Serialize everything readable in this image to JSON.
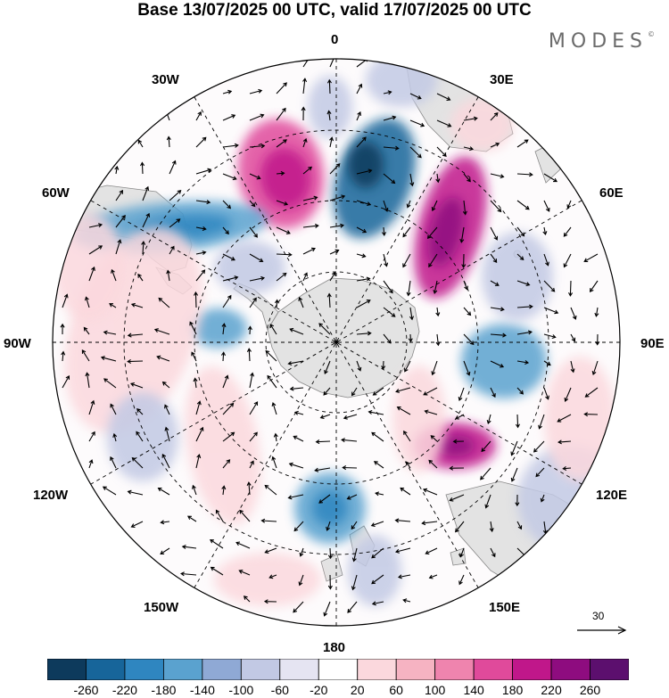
{
  "title": "Base 13/07/2025 00 UTC, valid 17/07/2025 00 UTC",
  "brand": {
    "text": "MODES",
    "mark": "©"
  },
  "longitude_labels": {
    "top": "0",
    "bottom": "180",
    "left": "90W",
    "right": "90E",
    "upper_left_1": "30W",
    "upper_left_2": "60W",
    "upper_right_1": "30E",
    "upper_right_2": "60E",
    "lower_left_1": "120W",
    "lower_left_2": "150W",
    "lower_right_1": "120E",
    "lower_right_2": "150E"
  },
  "reference_vector": {
    "label": "30"
  },
  "colorbar": {
    "ticks": [
      "-260",
      "-220",
      "-180",
      "-140",
      "-100",
      "-60",
      "-20",
      "20",
      "60",
      "100",
      "140",
      "180",
      "220",
      "260"
    ],
    "colors": [
      "#0d3a5c",
      "#17659a",
      "#2f86c0",
      "#5aa2cf",
      "#8fa9d5",
      "#c2c9e4",
      "#e5e4f2",
      "#ffffff",
      "#fbd8dd",
      "#f6b3c2",
      "#ef84ae",
      "#e04a9b",
      "#c0178a",
      "#8e0c7f",
      "#5c0f6e"
    ]
  },
  "colors": {
    "land": "#e3e3e3",
    "coast": "#888888",
    "grid": "#000000"
  }
}
